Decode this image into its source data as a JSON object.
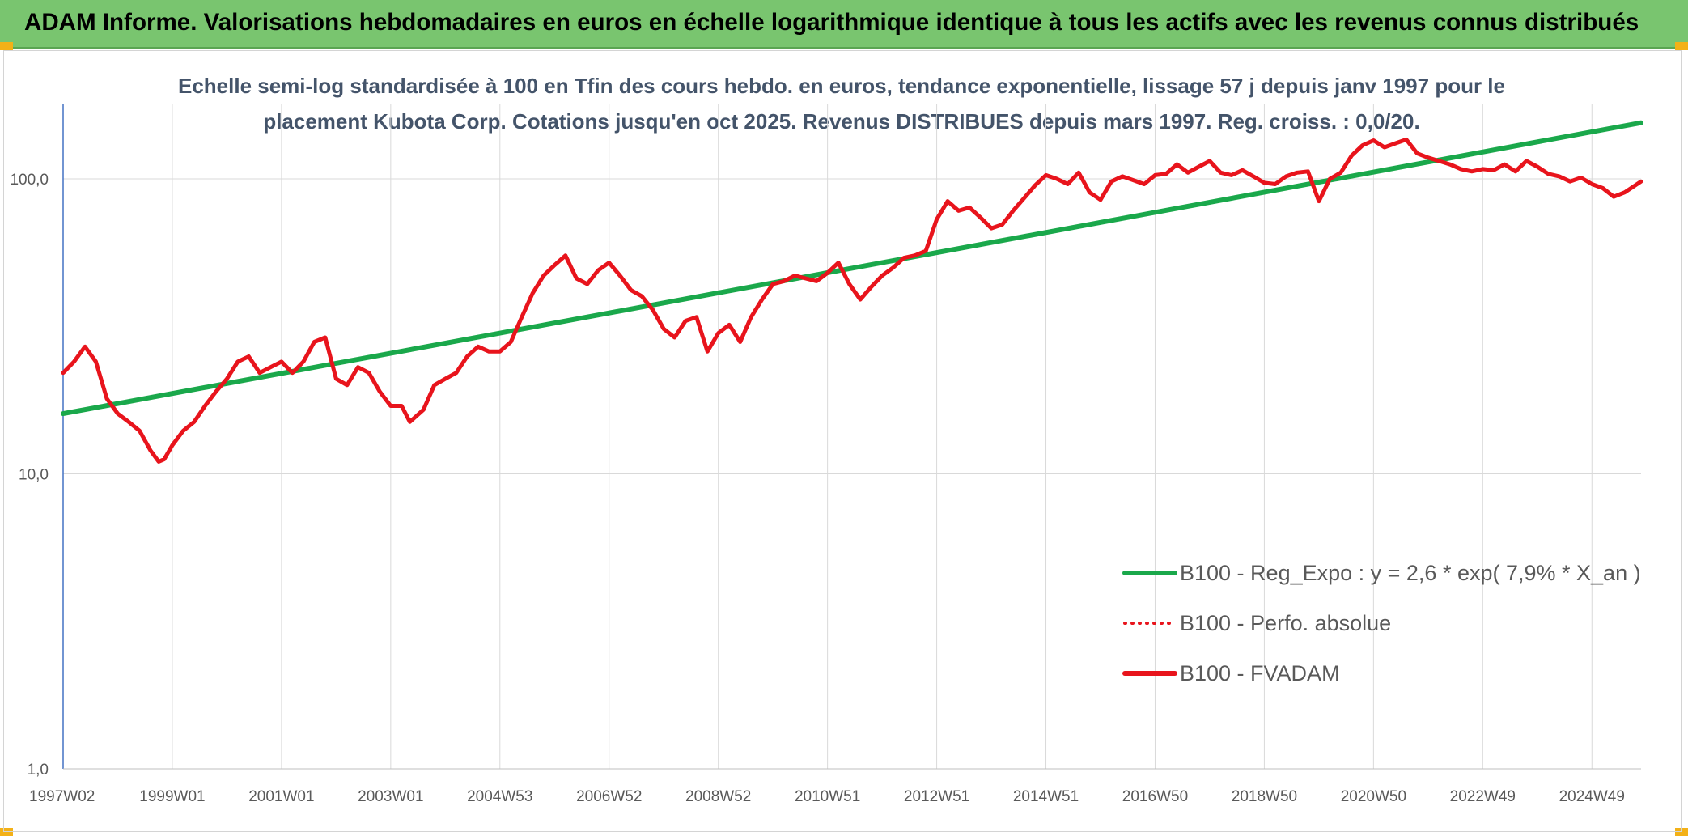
{
  "header": {
    "title": "ADAM Informe. Valorisations hebdomadaires en euros en échelle logarithmique identique à tous les actifs avec les revenus connus distribués"
  },
  "chart_data": {
    "type": "line",
    "title": "Echelle semi-log standardisée à 100 en Tfin des cours hebdo. en euros, tendance exponentielle, lissage 57 j depuis janv 1997 pour le placement Kubota Corp. Cotations jusqu'en oct 2025. Revenus DISTRIBUES depuis mars 1997. Reg. croiss. : 0,0/20.",
    "y_scale": "log",
    "ylim": [
      1,
      180
    ],
    "y_ticks": [
      {
        "value": 1,
        "label": "1,0"
      },
      {
        "value": 10,
        "label": "10,0"
      },
      {
        "value": 100,
        "label": "100,0"
      }
    ],
    "xlim": [
      1997.0,
      2025.9
    ],
    "x_ticks": [
      {
        "value": 1997.02,
        "label": "1997W02"
      },
      {
        "value": 1999.0,
        "label": "1999W01"
      },
      {
        "value": 2001.0,
        "label": "2001W01"
      },
      {
        "value": 2003.0,
        "label": "2003W01"
      },
      {
        "value": 2005.0,
        "label": "2004W53"
      },
      {
        "value": 2007.0,
        "label": "2006W52"
      },
      {
        "value": 2009.0,
        "label": "2008W52"
      },
      {
        "value": 2011.0,
        "label": "2010W51"
      },
      {
        "value": 2013.0,
        "label": "2012W51"
      },
      {
        "value": 2015.0,
        "label": "2014W51"
      },
      {
        "value": 2017.0,
        "label": "2016W50"
      },
      {
        "value": 2019.0,
        "label": "2018W50"
      },
      {
        "value": 2021.0,
        "label": "2020W50"
      },
      {
        "value": 2023.0,
        "label": "2022W49"
      },
      {
        "value": 2025.0,
        "label": "2024W49"
      }
    ],
    "grid": {
      "vertical": true,
      "horizontal": true
    },
    "legend_position": "bottom-right",
    "series": [
      {
        "name": "B100 - Reg_Expo : y = 2,6 * exp( 7,9% *  X_an )",
        "color": "#1aa84b",
        "style": "solid",
        "x": [
          1997.0,
          2025.9
        ],
        "y": [
          16.0,
          155.0
        ]
      },
      {
        "name": "B100 - Perfo. absolue",
        "color": "#e8141c",
        "style": "dotted",
        "x": [],
        "y": []
      },
      {
        "name": "B100 - FVADAM",
        "color": "#e8141c",
        "style": "solid",
        "x": [
          1997.0,
          1997.2,
          1997.4,
          1997.6,
          1997.8,
          1998.0,
          1998.2,
          1998.4,
          1998.6,
          1998.75,
          1998.85,
          1999.0,
          1999.2,
          1999.4,
          1999.6,
          1999.8,
          2000.0,
          2000.2,
          2000.4,
          2000.6,
          2000.8,
          2001.0,
          2001.2,
          2001.4,
          2001.6,
          2001.8,
          2002.0,
          2002.2,
          2002.4,
          2002.6,
          2002.8,
          2003.0,
          2003.2,
          2003.35,
          2003.6,
          2003.8,
          2004.0,
          2004.2,
          2004.4,
          2004.6,
          2004.8,
          2005.0,
          2005.2,
          2005.4,
          2005.6,
          2005.8,
          2006.0,
          2006.2,
          2006.4,
          2006.6,
          2006.8,
          2007.0,
          2007.2,
          2007.4,
          2007.6,
          2007.8,
          2008.0,
          2008.2,
          2008.4,
          2008.6,
          2008.8,
          2009.0,
          2009.2,
          2009.4,
          2009.6,
          2009.8,
          2010.0,
          2010.2,
          2010.4,
          2010.6,
          2010.8,
          2011.0,
          2011.2,
          2011.4,
          2011.6,
          2011.8,
          2012.0,
          2012.2,
          2012.4,
          2012.6,
          2012.8,
          2013.0,
          2013.2,
          2013.4,
          2013.6,
          2013.8,
          2014.0,
          2014.2,
          2014.4,
          2014.6,
          2014.8,
          2015.0,
          2015.2,
          2015.4,
          2015.6,
          2015.8,
          2016.0,
          2016.2,
          2016.4,
          2016.6,
          2016.8,
          2017.0,
          2017.2,
          2017.4,
          2017.6,
          2017.8,
          2018.0,
          2018.2,
          2018.4,
          2018.6,
          2018.8,
          2019.0,
          2019.2,
          2019.4,
          2019.6,
          2019.8,
          2020.0,
          2020.2,
          2020.4,
          2020.6,
          2020.8,
          2021.0,
          2021.2,
          2021.4,
          2021.6,
          2021.8,
          2022.0,
          2022.2,
          2022.4,
          2022.6,
          2022.8,
          2023.0,
          2023.2,
          2023.4,
          2023.6,
          2023.8,
          2024.0,
          2024.2,
          2024.4,
          2024.6,
          2024.8,
          2025.0,
          2025.2,
          2025.4,
          2025.6,
          2025.9
        ],
        "y": [
          22,
          24,
          27,
          24,
          18,
          16,
          15,
          14,
          12,
          11,
          11.2,
          12.5,
          14,
          15,
          17,
          19,
          21,
          24,
          25,
          22,
          23,
          24,
          22,
          24,
          28,
          29,
          21,
          20,
          23,
          22,
          19,
          17,
          17,
          15,
          16.5,
          20,
          21,
          22,
          25,
          27,
          26,
          26,
          28,
          34,
          41,
          47,
          51,
          55,
          46,
          44,
          49,
          52,
          47,
          42,
          40,
          36,
          31,
          29,
          33,
          34,
          26,
          30,
          32,
          28,
          34,
          39,
          44,
          45,
          47,
          46,
          45,
          48,
          52,
          44,
          39,
          43,
          47,
          50,
          54,
          55,
          57,
          73,
          84,
          78,
          80,
          74,
          68,
          70,
          78,
          86,
          95,
          103,
          100,
          96,
          105,
          90,
          85,
          98,
          102,
          99,
          96,
          103,
          104,
          112,
          105,
          110,
          115,
          105,
          103,
          107,
          102,
          97,
          96,
          102,
          105,
          106,
          84,
          100,
          105,
          120,
          130,
          135,
          128,
          132,
          136,
          122,
          118,
          115,
          112,
          108,
          106,
          108,
          107,
          112,
          106,
          115,
          110,
          104,
          102,
          98,
          101,
          96,
          93,
          87,
          90,
          98
        ]
      }
    ]
  }
}
